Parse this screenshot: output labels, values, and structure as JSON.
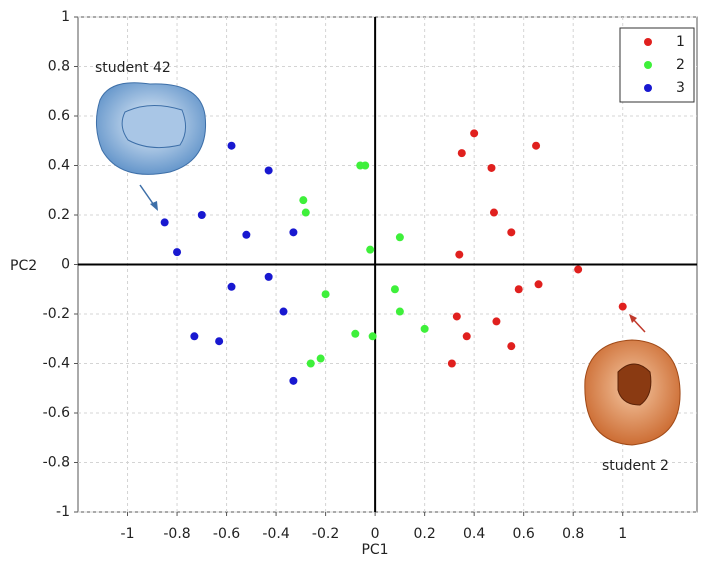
{
  "chart_data": {
    "type": "scatter",
    "x_label": "PC1",
    "y_label": "PC2",
    "xlim": [
      -1.2,
      1.3
    ],
    "ylim": [
      -1,
      1
    ],
    "xticks": [
      -1,
      -0.8,
      -0.6,
      -0.4,
      -0.2,
      0,
      0.2,
      0.4,
      0.6,
      0.8,
      1
    ],
    "yticks": [
      -1,
      -0.8,
      -0.6,
      -0.4,
      -0.2,
      0,
      0.2,
      0.4,
      0.6,
      0.8,
      1
    ],
    "grid": true,
    "legend": "upper right",
    "annotations": [
      "student 42",
      "student 2"
    ],
    "series": [
      {
        "name": "1",
        "color": "#e0201e",
        "x": [
          0.4,
          0.35,
          0.65,
          0.47,
          0.48,
          0.55,
          0.34,
          0.82,
          0.66,
          0.58,
          1.0,
          0.33,
          0.49,
          0.37,
          0.55,
          0.31
        ],
        "y": [
          0.53,
          0.45,
          0.48,
          0.39,
          0.21,
          0.13,
          0.04,
          -0.02,
          -0.08,
          -0.1,
          -0.17,
          -0.21,
          -0.23,
          -0.29,
          -0.33,
          -0.4
        ]
      },
      {
        "name": "2",
        "color": "#3ef03a",
        "x": [
          -0.06,
          -0.04,
          -0.29,
          -0.28,
          -0.02,
          0.1,
          -0.2,
          0.08,
          0.1,
          0.2,
          -0.08,
          -0.01,
          -0.22,
          -0.26
        ],
        "y": [
          0.4,
          0.4,
          0.26,
          0.21,
          0.06,
          0.11,
          -0.12,
          -0.1,
          -0.19,
          -0.26,
          -0.28,
          -0.29,
          -0.38,
          -0.4
        ]
      },
      {
        "name": "3",
        "color": "#1818d0",
        "x": [
          -0.58,
          -0.43,
          -0.7,
          -0.85,
          -0.8,
          -0.52,
          -0.33,
          -0.58,
          -0.43,
          -0.37,
          -0.73,
          -0.63,
          -0.33
        ],
        "y": [
          0.48,
          0.38,
          0.2,
          0.17,
          0.05,
          0.12,
          0.13,
          -0.09,
          -0.05,
          -0.19,
          -0.29,
          -0.31,
          -0.47
        ]
      }
    ]
  }
}
